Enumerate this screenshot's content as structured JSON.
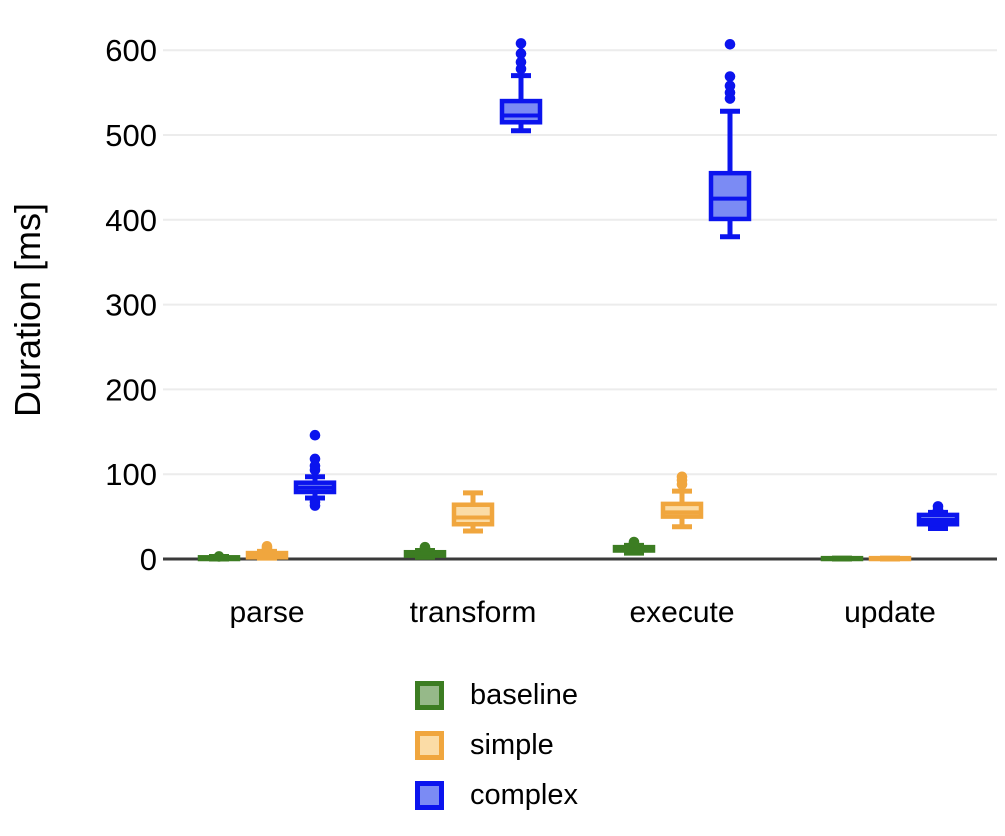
{
  "chart_data": {
    "type": "boxplot",
    "title": "",
    "ylabel": "Duration [ms]",
    "xlabel": "",
    "ylim": [
      0,
      620
    ],
    "yticks": [
      0,
      100,
      200,
      300,
      400,
      500,
      600
    ],
    "grid": "horizontal-light-gray",
    "legend_position": "bottom",
    "categories": [
      "parse",
      "transform",
      "execute",
      "update"
    ],
    "colors": {
      "grid": "#ececec",
      "axis": "#3a3a3a",
      "text": "#000000"
    },
    "series": [
      {
        "name": "baseline",
        "stroke": "#3c7d22",
        "fill": "#96b989",
        "boxes": [
          {
            "category": "parse",
            "low": 0,
            "q1": 0,
            "median": 1,
            "q3": 2,
            "high": 3,
            "outliers": [
              3
            ]
          },
          {
            "category": "transform",
            "low": 2,
            "q1": 4,
            "median": 6,
            "q3": 8,
            "high": 10,
            "outliers": [
              12,
              14
            ]
          },
          {
            "category": "execute",
            "low": 7,
            "q1": 10,
            "median": 12,
            "q3": 14,
            "high": 16,
            "outliers": [
              18,
              20
            ]
          },
          {
            "category": "update",
            "low": 0,
            "q1": 0,
            "median": 0,
            "q3": 1,
            "high": 1,
            "outliers": []
          }
        ]
      },
      {
        "name": "simple",
        "stroke": "#f0a63e",
        "fill": "#fbdca6",
        "boxes": [
          {
            "category": "parse",
            "low": 1,
            "q1": 2,
            "median": 4,
            "q3": 7,
            "high": 9,
            "outliers": [
              11,
              13,
              15
            ]
          },
          {
            "category": "transform",
            "low": 33,
            "q1": 41,
            "median": 49,
            "q3": 64,
            "high": 78,
            "outliers": []
          },
          {
            "category": "execute",
            "low": 38,
            "q1": 50,
            "median": 55,
            "q3": 65,
            "high": 80,
            "outliers": [
              88,
              93,
              97
            ]
          },
          {
            "category": "update",
            "low": 0,
            "q1": 0,
            "median": 0,
            "q3": 1,
            "high": 1,
            "outliers": []
          }
        ]
      },
      {
        "name": "complex",
        "stroke": "#0b14ee",
        "fill": "#7b8bf4",
        "boxes": [
          {
            "category": "parse",
            "low": 72,
            "q1": 79,
            "median": 84,
            "q3": 90,
            "high": 97,
            "outliers": [
              63,
              67,
              105,
              110,
              118,
              146
            ]
          },
          {
            "category": "transform",
            "low": 505,
            "q1": 515,
            "median": 523,
            "q3": 540,
            "high": 570,
            "outliers": [
              578,
              586,
              596,
              608
            ]
          },
          {
            "category": "execute",
            "low": 380,
            "q1": 401,
            "median": 425,
            "q3": 455,
            "high": 528,
            "outliers": [
              543,
              550,
              558,
              569,
              607
            ]
          },
          {
            "category": "update",
            "low": 36,
            "q1": 41,
            "median": 46,
            "q3": 52,
            "high": 55,
            "outliers": [
              58,
              62
            ]
          }
        ]
      }
    ]
  }
}
